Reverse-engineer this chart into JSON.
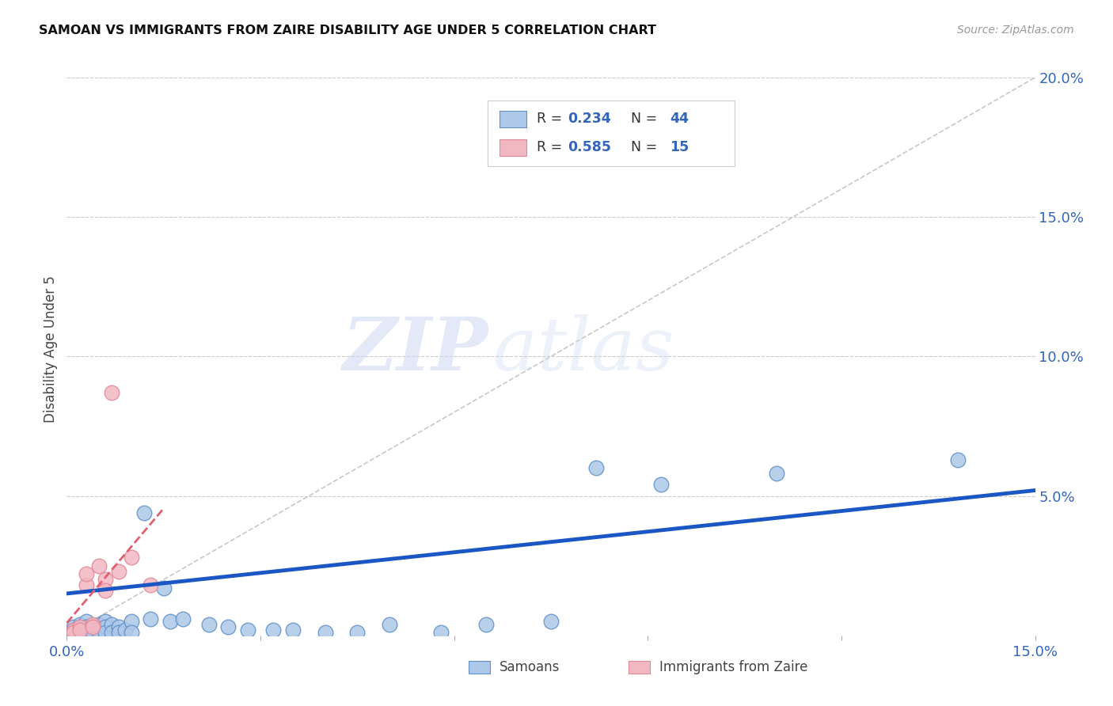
{
  "title": "SAMOAN VS IMMIGRANTS FROM ZAIRE DISABILITY AGE UNDER 5 CORRELATION CHART",
  "source": "Source: ZipAtlas.com",
  "ylabel": "Disability Age Under 5",
  "xlim": [
    0.0,
    0.15
  ],
  "ylim": [
    0.0,
    0.205
  ],
  "blue_line_color": "#1a56c4",
  "red_line_color": "#e06070",
  "diagonal_color": "#c8c8c8",
  "dot_color_samoans": "#adc8e8",
  "dot_color_zaire": "#f2b8c2",
  "dot_edge_samoans": "#6090c8",
  "dot_edge_zaire": "#e08898",
  "background_color": "#ffffff",
  "watermark_zip": "ZIP",
  "watermark_atlas": "atlas",
  "grid_color": "#cccccc",
  "samoans_x": [
    0.001,
    0.001,
    0.001,
    0.002,
    0.002,
    0.002,
    0.003,
    0.003,
    0.003,
    0.004,
    0.004,
    0.005,
    0.005,
    0.005,
    0.006,
    0.006,
    0.006,
    0.007,
    0.007,
    0.008,
    0.008,
    0.009,
    0.01,
    0.01,
    0.012,
    0.013,
    0.015,
    0.016,
    0.018,
    0.022,
    0.025,
    0.028,
    0.032,
    0.035,
    0.04,
    0.045,
    0.05,
    0.058,
    0.065,
    0.075,
    0.082,
    0.092,
    0.11,
    0.138
  ],
  "samoans_y": [
    0.003,
    0.002,
    0.001,
    0.004,
    0.002,
    0.001,
    0.005,
    0.003,
    0.001,
    0.003,
    0.001,
    0.004,
    0.002,
    0.001,
    0.005,
    0.003,
    0.001,
    0.004,
    0.001,
    0.003,
    0.001,
    0.002,
    0.005,
    0.001,
    0.044,
    0.006,
    0.017,
    0.005,
    0.006,
    0.004,
    0.003,
    0.002,
    0.002,
    0.002,
    0.001,
    0.001,
    0.004,
    0.001,
    0.004,
    0.005,
    0.06,
    0.054,
    0.058,
    0.063
  ],
  "zaire_x": [
    0.001,
    0.001,
    0.002,
    0.002,
    0.003,
    0.003,
    0.004,
    0.004,
    0.005,
    0.006,
    0.006,
    0.007,
    0.008,
    0.01,
    0.013
  ],
  "zaire_y": [
    0.002,
    0.001,
    0.003,
    0.002,
    0.018,
    0.022,
    0.004,
    0.003,
    0.025,
    0.02,
    0.016,
    0.087,
    0.023,
    0.028,
    0.018
  ]
}
